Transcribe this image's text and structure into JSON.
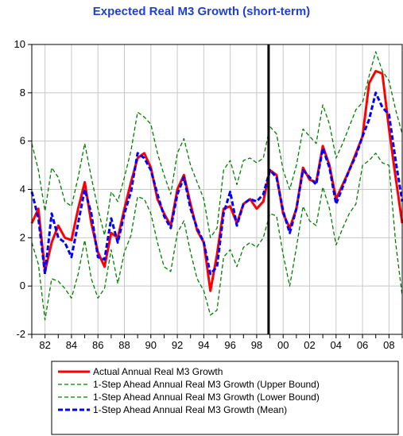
{
  "chart_data": {
    "type": "line",
    "title": "Expected Real M3 Growth (short-term)",
    "xlabel": "",
    "ylabel": "",
    "xlim": [
      1981.0,
      2009.0
    ],
    "ylim": [
      -2,
      10
    ],
    "y_ticks": [
      -2,
      0,
      2,
      4,
      6,
      8,
      10
    ],
    "x_ticks": [
      1982,
      1984,
      1986,
      1988,
      1990,
      1992,
      1994,
      1996,
      1998,
      2000,
      2002,
      2004,
      2006,
      2008
    ],
    "x_tick_labels": [
      "82",
      "84",
      "86",
      "88",
      "90",
      "92",
      "94",
      "96",
      "98",
      "00",
      "02",
      "04",
      "06",
      "08"
    ],
    "grid": true,
    "vertical_marker": 1998.9,
    "legend_position": "bottom",
    "x": [
      1981.0,
      1981.5,
      1982.0,
      1982.5,
      1983.0,
      1983.5,
      1984.0,
      1984.5,
      1985.0,
      1985.5,
      1986.0,
      1986.5,
      1987.0,
      1987.5,
      1988.0,
      1988.5,
      1989.0,
      1989.5,
      1990.0,
      1990.5,
      1991.0,
      1991.5,
      1992.0,
      1992.5,
      1993.0,
      1993.5,
      1994.0,
      1994.5,
      1995.0,
      1995.5,
      1996.0,
      1996.5,
      1997.0,
      1997.5,
      1998.0,
      1998.5,
      1999.0,
      1999.5,
      2000.0,
      2000.5,
      2001.0,
      2001.5,
      2002.0,
      2002.5,
      2003.0,
      2003.5,
      2004.0,
      2004.5,
      2005.0,
      2005.5,
      2006.0,
      2006.5,
      2007.0,
      2007.5,
      2008.0,
      2008.5,
      2009.0
    ],
    "series": [
      {
        "name": "Actual Annual Real M3 Growth",
        "color": "#ff0000",
        "style": "solid",
        "values": [
          2.6,
          3.2,
          0.6,
          1.8,
          2.5,
          2.0,
          1.9,
          3.2,
          4.3,
          2.6,
          1.4,
          0.8,
          2.2,
          2.0,
          3.2,
          4.3,
          5.3,
          5.5,
          4.9,
          3.6,
          3.0,
          2.5,
          4.0,
          4.6,
          3.4,
          2.3,
          1.8,
          -0.2,
          1.3,
          3.2,
          3.3,
          2.6,
          3.4,
          3.6,
          3.2,
          3.5,
          4.8,
          4.6,
          3.0,
          2.4,
          3.2,
          4.9,
          4.4,
          4.3,
          5.8,
          5.0,
          3.6,
          4.2,
          4.8,
          5.5,
          6.2,
          8.4,
          8.9,
          8.8,
          6.5,
          4.5,
          2.6
        ]
      },
      {
        "name": "1-Step Ahead Annual Real M3 Growth (Upper Bound)",
        "color": "#008000",
        "style": "dashed",
        "values": [
          5.9,
          4.8,
          3.1,
          4.9,
          4.5,
          3.5,
          3.3,
          4.5,
          5.9,
          4.5,
          3.2,
          2.1,
          3.9,
          3.5,
          4.5,
          5.6,
          7.2,
          7.0,
          6.7,
          5.5,
          4.6,
          3.8,
          5.5,
          6.1,
          5.0,
          4.3,
          3.6,
          2.0,
          2.4,
          4.8,
          5.2,
          4.2,
          5.2,
          5.3,
          5.1,
          5.3,
          6.6,
          6.3,
          4.8,
          4.0,
          5.0,
          6.5,
          6.2,
          5.9,
          7.5,
          6.7,
          5.3,
          5.9,
          6.6,
          7.3,
          7.6,
          8.7,
          9.7,
          8.9,
          8.5,
          7.3,
          6.3
        ]
      },
      {
        "name": "1-Step Ahead Annual Real M3 Growth (Lower Bound)",
        "color": "#008000",
        "style": "dashed",
        "values": [
          1.8,
          0.9,
          -1.4,
          0.3,
          0.2,
          -0.1,
          -0.5,
          0.5,
          1.9,
          0.3,
          -0.5,
          -0.1,
          1.5,
          0.1,
          1.4,
          2.1,
          3.7,
          3.6,
          3.0,
          1.8,
          0.8,
          0.6,
          2.2,
          2.7,
          1.4,
          0.3,
          -0.2,
          -1.2,
          -1.0,
          1.2,
          1.5,
          0.8,
          1.6,
          1.8,
          1.6,
          2.0,
          3.0,
          2.9,
          1.3,
          0.0,
          1.6,
          3.3,
          2.7,
          2.5,
          4.1,
          3.2,
          1.7,
          2.4,
          3.0,
          3.4,
          5.0,
          5.2,
          5.5,
          5.1,
          5.0,
          1.8,
          -0.4
        ]
      },
      {
        "name": "1-Step Ahead Annual Real M3 Growth (Mean)",
        "color": "#0000ff",
        "style": "dashed-thick",
        "values": [
          3.9,
          2.8,
          0.5,
          3.0,
          2.0,
          1.8,
          1.2,
          2.6,
          4.0,
          3.0,
          1.2,
          1.1,
          2.8,
          1.8,
          3.0,
          3.9,
          5.5,
          5.3,
          4.8,
          3.8,
          2.9,
          2.4,
          3.8,
          4.5,
          3.2,
          2.4,
          1.8,
          0.5,
          0.8,
          3.0,
          3.9,
          2.5,
          3.4,
          3.6,
          3.5,
          3.8,
          4.8,
          4.5,
          3.1,
          2.2,
          3.2,
          4.8,
          4.5,
          4.2,
          5.7,
          4.9,
          3.4,
          4.1,
          4.8,
          5.4,
          6.2,
          6.9,
          8.0,
          7.4,
          7.1,
          5.2,
          3.5
        ]
      }
    ]
  }
}
